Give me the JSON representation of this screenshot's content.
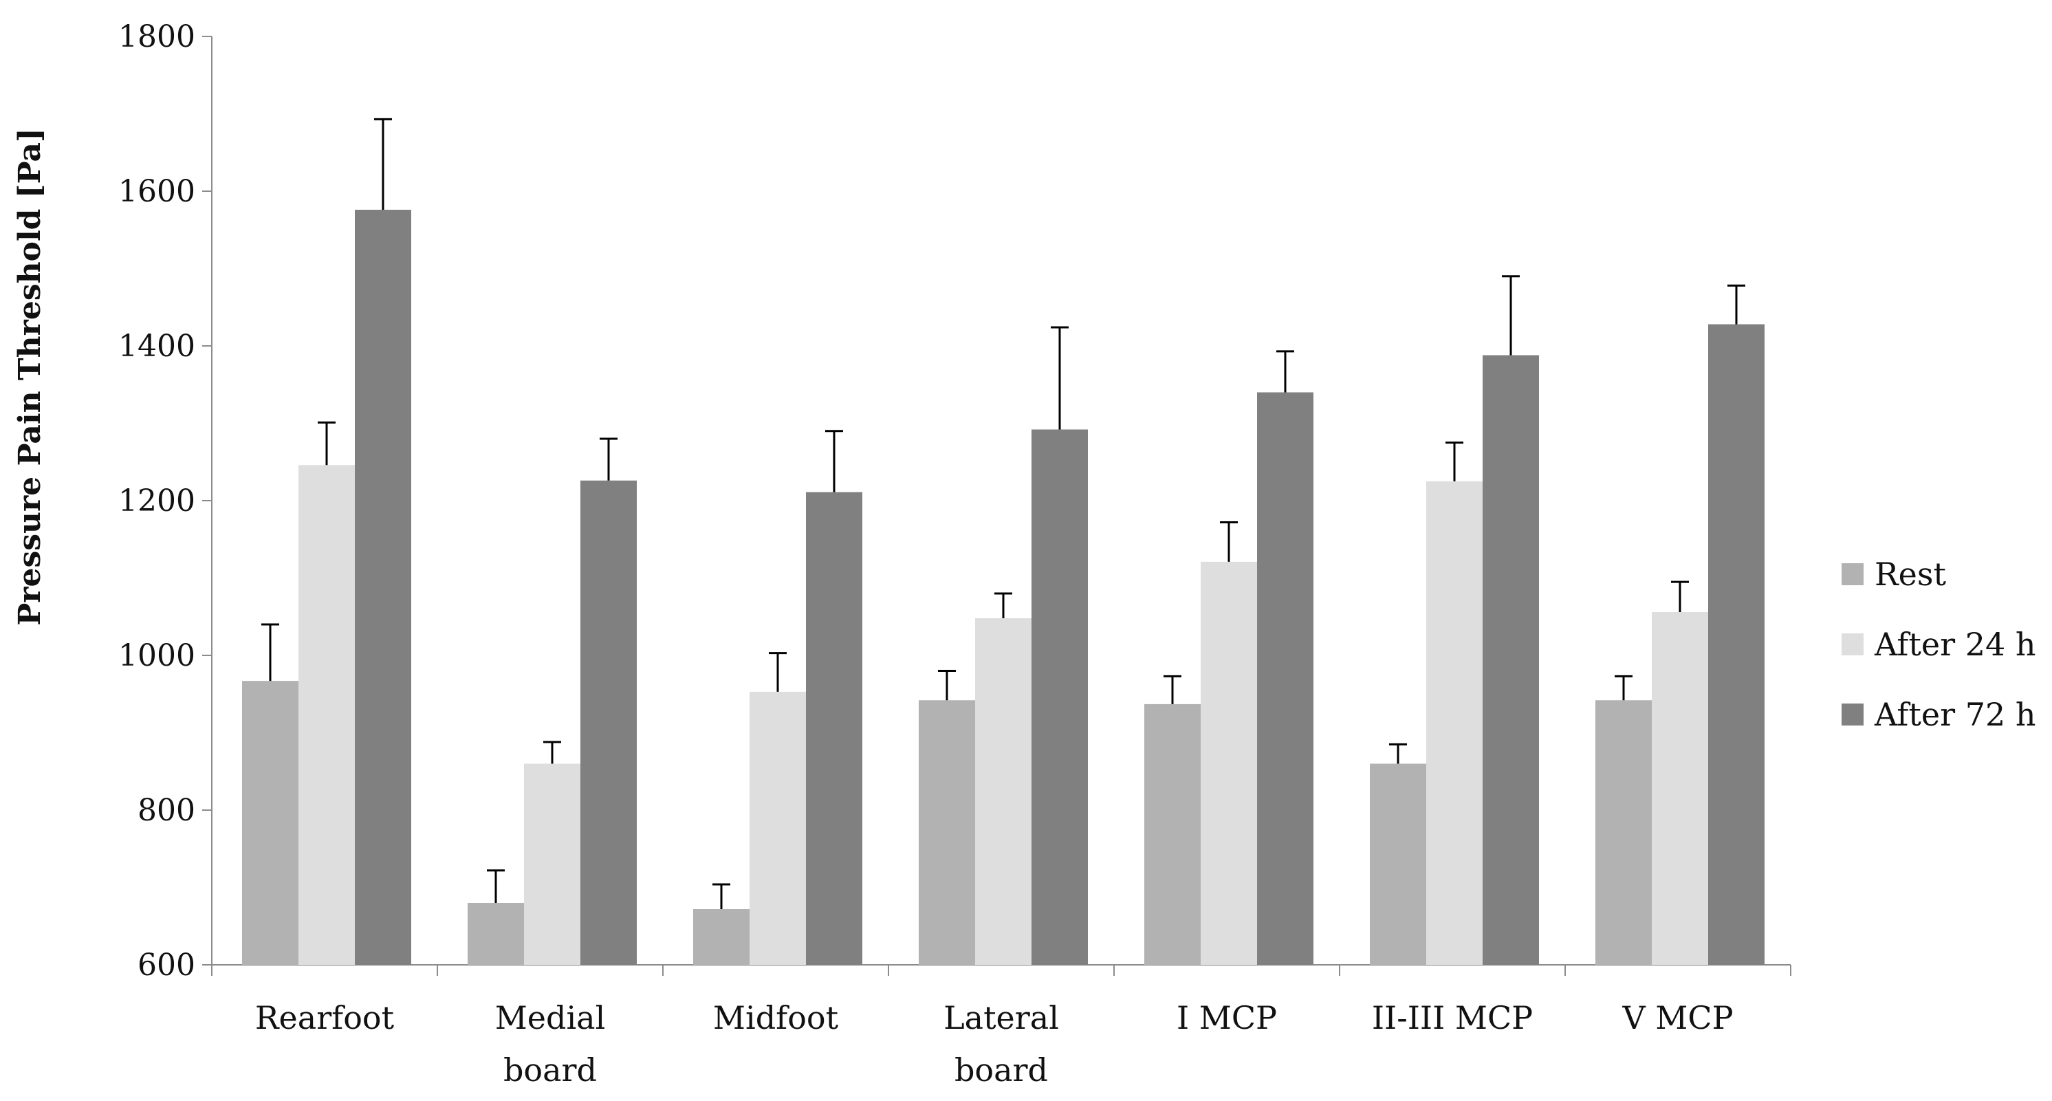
{
  "chart_data": {
    "type": "bar",
    "title": "",
    "xlabel": "",
    "ylabel": "Pressure Pain Threshold [Pa]",
    "ylim": [
      600,
      1800
    ],
    "yticks": [
      600,
      800,
      1000,
      1200,
      1400,
      1600,
      1800
    ],
    "grid": false,
    "legend_position": "right",
    "categories": [
      [
        "Rearfoot"
      ],
      [
        "Medial",
        "board"
      ],
      [
        "Midfoot"
      ],
      [
        "Lateral",
        "board"
      ],
      [
        "I MCP"
      ],
      [
        "II-III  MCP"
      ],
      [
        "V MCP"
      ]
    ],
    "series": [
      {
        "name": "Rest",
        "color": "#b2b2b2",
        "values": [
          967,
          680,
          672,
          942,
          937,
          860,
          942
        ],
        "errors": [
          73,
          42,
          32,
          38,
          36,
          25,
          31
        ]
      },
      {
        "name": "After 24 h",
        "color": "#dedede",
        "values": [
          1246,
          860,
          953,
          1048,
          1121,
          1225,
          1056
        ],
        "errors": [
          55,
          28,
          50,
          32,
          51,
          50,
          39
        ]
      },
      {
        "name": "After 72 h",
        "color": "#808080",
        "values": [
          1576,
          1226,
          1211,
          1292,
          1340,
          1388,
          1428
        ],
        "errors": [
          117,
          54,
          79,
          132,
          53,
          102,
          50
        ]
      }
    ]
  }
}
